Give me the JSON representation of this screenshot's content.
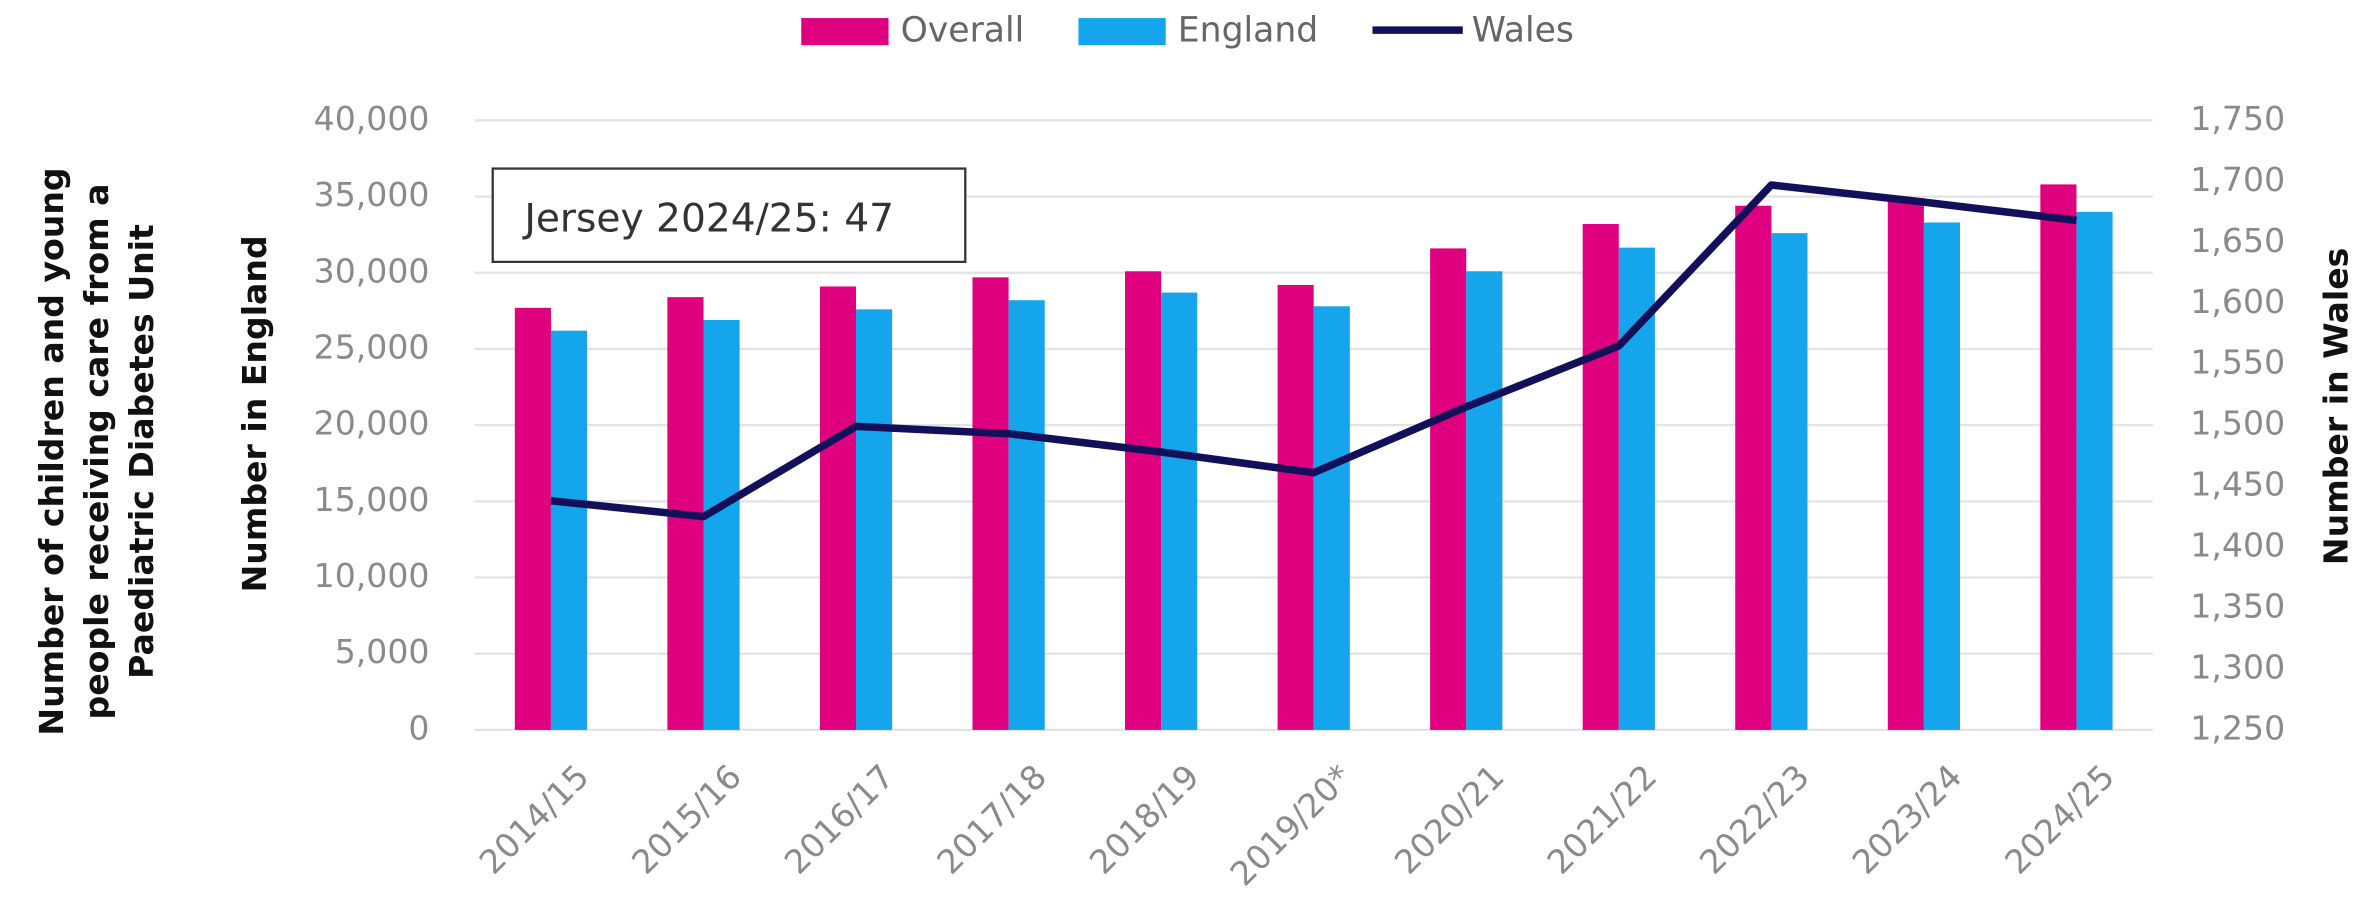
{
  "chart_data": {
    "type": "bar_line",
    "ylabel_outer": [
      "Number of children and young",
      "people receiving care from a",
      "Paediatric Diabetes Unit"
    ],
    "ylabel": "Number in England",
    "y2label": "Number in Wales",
    "annotation": "Jersey 2024/25: 47",
    "categories": [
      "2014/15",
      "2015/16",
      "2016/17",
      "2017/18",
      "2018/19",
      "2019/20*",
      "2020/21",
      "2021/22",
      "2022/23",
      "2023/24",
      "2024/25"
    ],
    "series": [
      {
        "name": "Overall",
        "type": "bar",
        "color": "#e0007f",
        "values": [
          27700,
          28400,
          29100,
          29700,
          30100,
          29200,
          31600,
          33200,
          34400,
          34900,
          35800
        ]
      },
      {
        "name": "England",
        "type": "bar",
        "color": "#15a5ec",
        "values": [
          26200,
          26900,
          27600,
          28200,
          28700,
          27800,
          30100,
          31650,
          32600,
          33300,
          34000
        ]
      },
      {
        "name": "Wales",
        "type": "line",
        "axis": "y2",
        "color": "#12105a",
        "values": [
          1438,
          1425,
          1499,
          1493,
          1478,
          1461,
          1515,
          1565,
          1697,
          1683,
          1668
        ]
      }
    ],
    "ylim": [
      0,
      40000
    ],
    "yticks": [
      0,
      {
        "value": 5000,
        "label": "5,000"
      },
      {
        "value": 10000,
        "label": "10,000"
      },
      {
        "value": 15000,
        "label": "15,000"
      },
      {
        "value": 20000,
        "label": "20,000"
      },
      {
        "value": 25000,
        "label": "25,000"
      },
      {
        "value": 30000,
        "label": "30,000"
      },
      {
        "value": 35000,
        "label": "35,000"
      },
      {
        "value": 40000,
        "label": "40,000"
      }
    ],
    "y2lim": [
      1250,
      1750
    ],
    "y2ticks": [
      {
        "value": 1250,
        "label": "1,250"
      },
      {
        "value": 1300,
        "label": "1,300"
      },
      {
        "value": 1350,
        "label": "1,350"
      },
      {
        "value": 1400,
        "label": "1,400"
      },
      {
        "value": 1450,
        "label": "1,450"
      },
      {
        "value": 1500,
        "label": "1,500"
      },
      {
        "value": 1550,
        "label": "1,550"
      },
      {
        "value": 1600,
        "label": "1,600"
      },
      {
        "value": 1650,
        "label": "1,650"
      },
      {
        "value": 1700,
        "label": "1,700"
      },
      {
        "value": 1750,
        "label": "1,750"
      }
    ],
    "grid": true
  }
}
